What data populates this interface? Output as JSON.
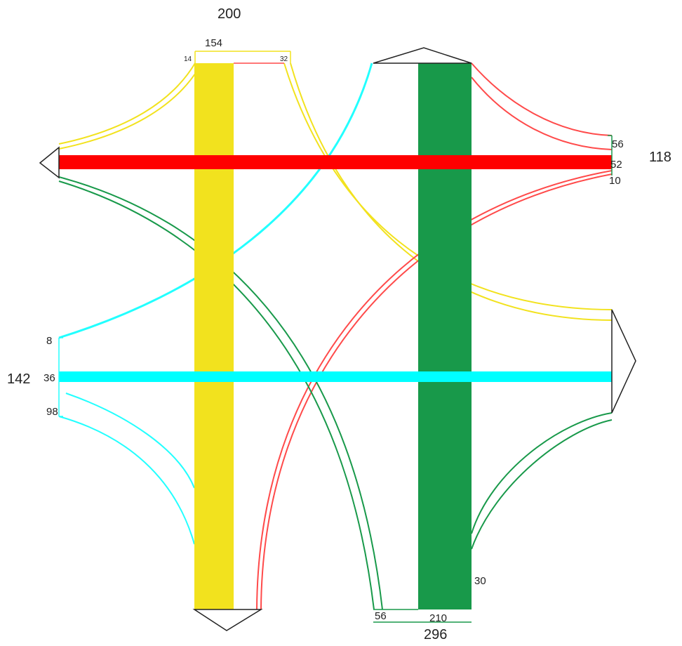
{
  "diagram": {
    "approaches": {
      "north": {
        "total": "200",
        "left_flow": "14",
        "through_flow": "154",
        "right_flow": "32",
        "color": "#f2e21e"
      },
      "east": {
        "total": "118",
        "left_flow": "56",
        "through_flow": "52",
        "right_flow": "10",
        "color": "#ff0000"
      },
      "south": {
        "total": "296",
        "left_flow": "56",
        "through_flow": "210",
        "right_flow": "30",
        "color": "#18994a"
      },
      "west": {
        "total": "142",
        "left_flow": "8",
        "through_flow": "36",
        "right_flow": "98",
        "color": "#00ffff"
      }
    }
  }
}
